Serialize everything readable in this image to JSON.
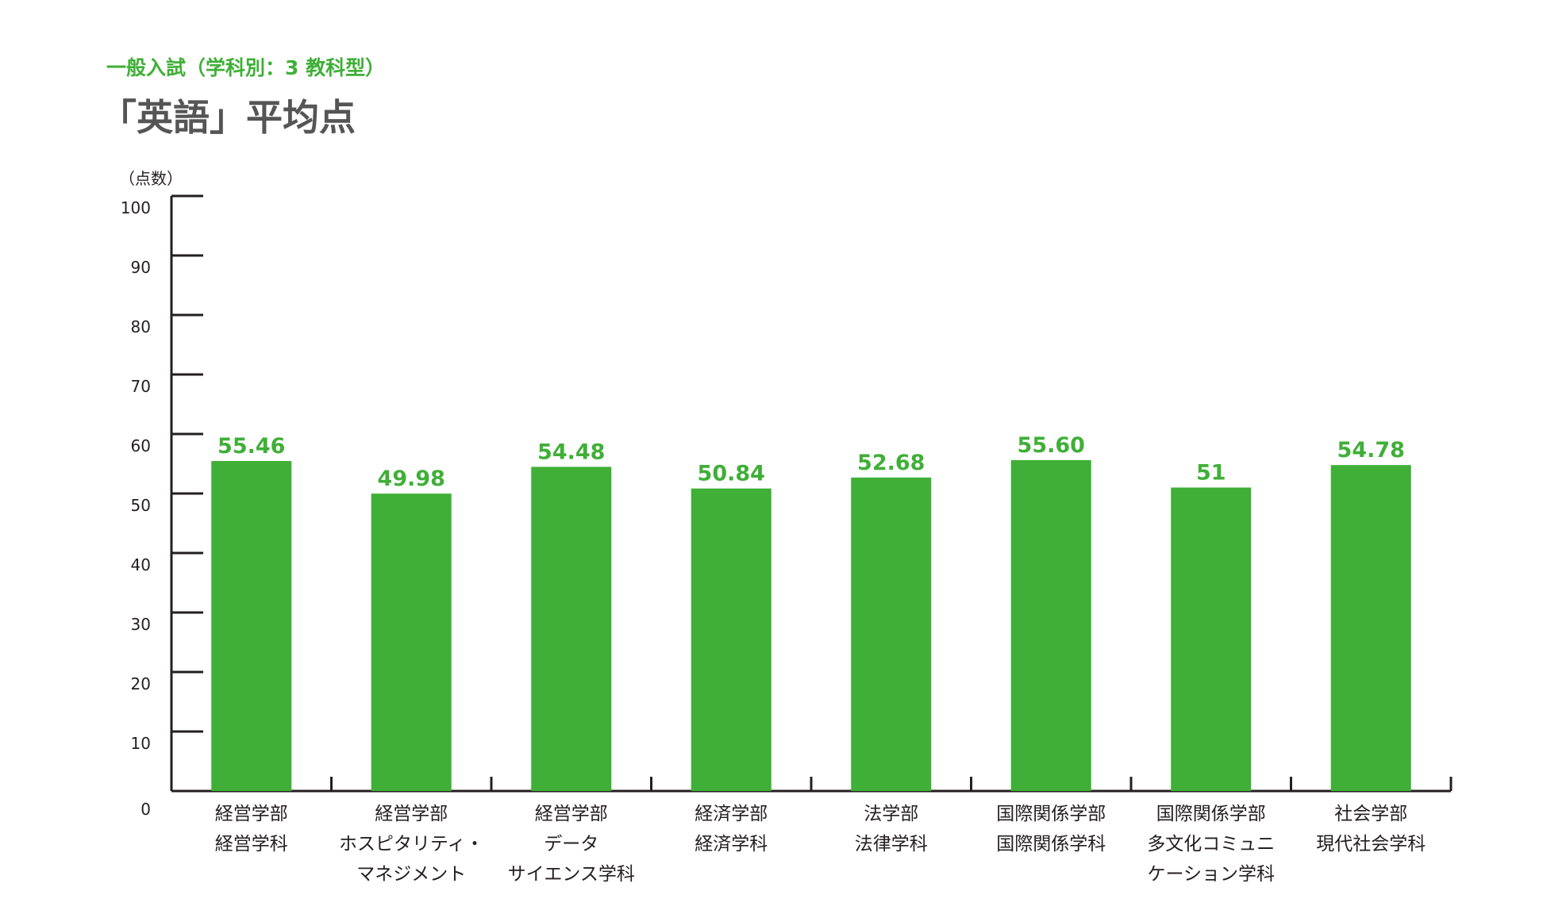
{
  "subtitle": "一般入試（学科別：3 教科型）",
  "title": "「英語」平均点",
  "colors": {
    "bar": "#3faf37",
    "axis": "#231f20",
    "label": "#3faf37",
    "title": "#555555"
  },
  "chart_data": {
    "type": "bar",
    "title": "「英語」平均点",
    "ylabel": "（点数）",
    "ylim": [
      0,
      100
    ],
    "yticks": [
      0,
      10,
      20,
      30,
      40,
      50,
      60,
      70,
      80,
      90,
      100
    ],
    "categories": [
      [
        "経営学部",
        "経営学科"
      ],
      [
        "経営学部",
        "ホスピタリティ・",
        "マネジメント"
      ],
      [
        "経営学部",
        "データ",
        "サイエンス学科"
      ],
      [
        "経済学部",
        "経済学科"
      ],
      [
        "法学部",
        "法律学科"
      ],
      [
        "国際関係学部",
        "国際関係学科"
      ],
      [
        "国際関係学部",
        "多文化コミュニ",
        "ケーション学科"
      ],
      [
        "社会学部",
        "現代社会学科"
      ]
    ],
    "values": [
      55.46,
      49.98,
      54.48,
      50.84,
      52.68,
      55.6,
      51,
      54.78
    ],
    "value_labels": [
      "55.46",
      "49.98",
      "54.48",
      "50.84",
      "52.68",
      "55.60",
      "51",
      "54.78"
    ],
    "grid": false,
    "legend": "none"
  }
}
